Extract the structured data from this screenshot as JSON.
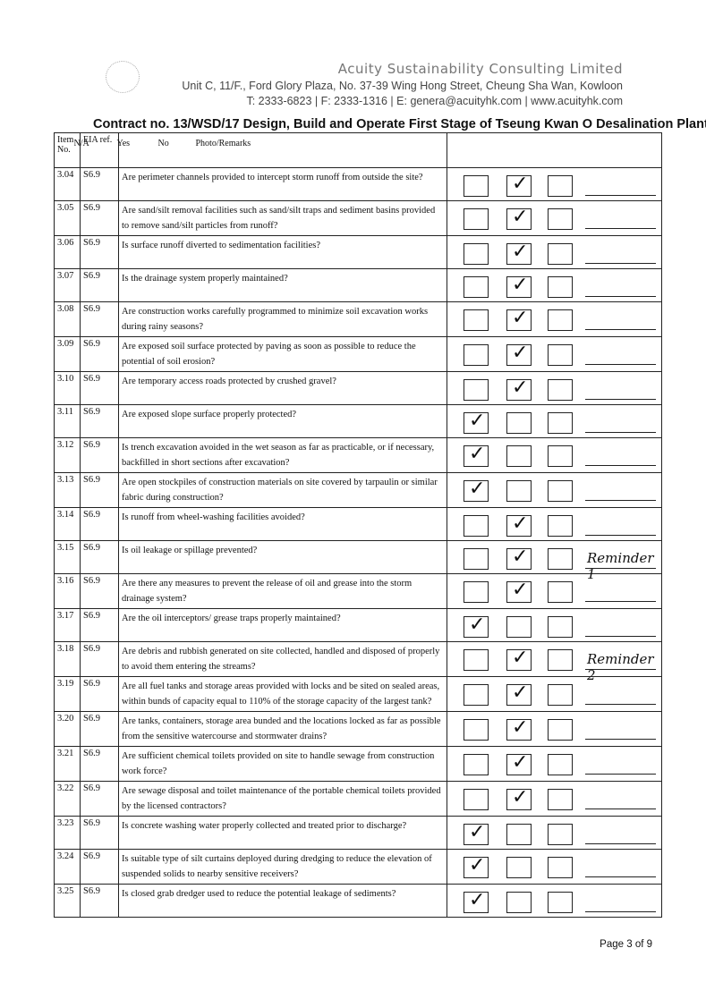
{
  "header": {
    "company": "Acuity Sustainability Consulting Limited",
    "address": "Unit C, 11/F., Ford Glory Plaza, No. 37-39 Wing Hong Street, Cheung Sha Wan, Kowloon",
    "contact": "T: 2333-6823 | F: 2333-1316 | E: genera@acuityhk.com | www.acuityhk.com",
    "contract": "Contract no.  13/WSD/17 Design, Build and Operate First Stage of Tseung Kwan O Desalination Plant"
  },
  "columns": {
    "item": "Item No.",
    "eia": "EIA ref.",
    "na": "N/A",
    "yes": "Yes",
    "no": "No",
    "remarks": "Photo/Remarks"
  },
  "rows": [
    {
      "item": "3.04",
      "eia": "S6.9",
      "q": "Are perimeter channels provided to intercept storm runoff from outside the site?",
      "answer": "Yes",
      "remark": ""
    },
    {
      "item": "3.05",
      "eia": "S6.9",
      "q": "Are sand/silt removal facilities such as sand/silt traps and sediment basins provided to remove sand/silt particles from runoff?",
      "answer": "Yes",
      "remark": ""
    },
    {
      "item": "3.06",
      "eia": "S6.9",
      "q": "Is surface runoff diverted to sedimentation facilities?",
      "answer": "Yes",
      "remark": ""
    },
    {
      "item": "3.07",
      "eia": "S6.9",
      "q": "Is the drainage system properly maintained?",
      "answer": "Yes",
      "remark": ""
    },
    {
      "item": "3.08",
      "eia": "S6.9",
      "q": "Are construction works carefully programmed to minimize soil excavation works during rainy seasons?",
      "answer": "Yes",
      "remark": ""
    },
    {
      "item": "3.09",
      "eia": "S6.9",
      "q": "Are exposed soil surface protected by paving as soon as possible to reduce the potential of soil erosion?",
      "answer": "Yes",
      "remark": ""
    },
    {
      "item": "3.10",
      "eia": "S6.9",
      "q": "Are temporary access roads protected by crushed gravel?",
      "answer": "Yes",
      "remark": ""
    },
    {
      "item": "3.11",
      "eia": "S6.9",
      "q": "Are exposed slope surface properly protected?",
      "answer": "N/A",
      "remark": ""
    },
    {
      "item": "3.12",
      "eia": "S6.9",
      "q": "Is trench excavation avoided in the wet season as far as practicable, or if necessary, backfilled in short sections after excavation?",
      "answer": "N/A",
      "remark": ""
    },
    {
      "item": "3.13",
      "eia": "S6.9",
      "q": "Are open stockpiles of construction materials on site covered by tarpaulin or similar fabric during construction?",
      "answer": "N/A",
      "remark": ""
    },
    {
      "item": "3.14",
      "eia": "S6.9",
      "q": "Is runoff from wheel-washing facilities avoided?",
      "answer": "Yes",
      "remark": ""
    },
    {
      "item": "3.15",
      "eia": "S6.9",
      "q": "Is oil leakage or spillage prevented?",
      "answer": "Yes",
      "remark": "Reminder 1"
    },
    {
      "item": "3.16",
      "eia": "S6.9",
      "q": "Are there any measures to prevent the release of oil and grease into the storm drainage system?",
      "answer": "Yes",
      "remark": ""
    },
    {
      "item": "3.17",
      "eia": "S6.9",
      "q": "Are the oil interceptors/ grease traps properly maintained?",
      "answer": "N/A",
      "remark": ""
    },
    {
      "item": "3.18",
      "eia": "S6.9",
      "q": "Are debris and rubbish generated on site collected, handled and disposed of properly to avoid them entering the streams?",
      "answer": "Yes",
      "remark": "Reminder 2"
    },
    {
      "item": "3.19",
      "eia": "S6.9",
      "q": "Are all fuel tanks and storage areas provided with locks and be sited on sealed areas, within bunds of capacity equal to 110% of the storage capacity of the largest tank?",
      "answer": "Yes",
      "remark": ""
    },
    {
      "item": "3.20",
      "eia": "S6.9",
      "q": "Are tanks, containers, storage area bunded and the locations locked as far as possible from the sensitive watercourse and stormwater drains?",
      "answer": "Yes",
      "remark": ""
    },
    {
      "item": "3.21",
      "eia": "S6.9",
      "q": "Are sufficient chemical toilets provided on site to handle sewage from construction work force?",
      "answer": "Yes",
      "remark": ""
    },
    {
      "item": "3.22",
      "eia": "S6.9",
      "q": "Are sewage disposal and toilet maintenance of the portable chemical toilets provided by the licensed contractors?",
      "answer": "Yes",
      "remark": ""
    },
    {
      "item": "3.23",
      "eia": "S6.9",
      "q": "Is concrete washing water properly collected and treated prior to discharge?",
      "answer": "N/A",
      "remark": ""
    },
    {
      "item": "3.24",
      "eia": "S6.9",
      "q": "Is suitable type of silt curtains deployed during dredging to reduce the elevation of suspended solids to nearby sensitive receivers?",
      "answer": "N/A",
      "remark": ""
    },
    {
      "item": "3.25",
      "eia": "S6.9",
      "q": "Is closed grab dredger used to reduce the potential leakage of sediments?",
      "answer": "N/A",
      "remark": ""
    }
  ],
  "footer": {
    "page": "Page 3 of 9"
  }
}
